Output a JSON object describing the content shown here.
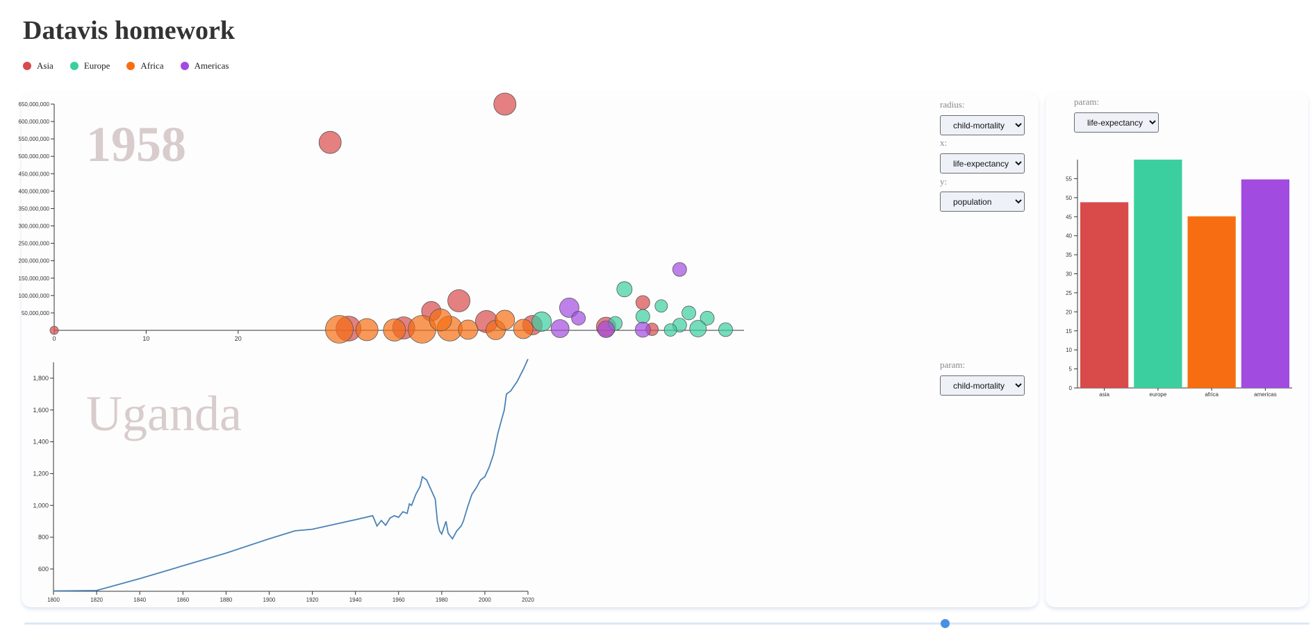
{
  "page_title": "Datavis homework",
  "legend": [
    {
      "label": "Asia",
      "color": "#d94a4a"
    },
    {
      "label": "Europe",
      "color": "#3bcf9f"
    },
    {
      "label": "Africa",
      "color": "#f76e12"
    },
    {
      "label": "Americas",
      "color": "#a14be0"
    }
  ],
  "controls": {
    "radius_label": "radius:",
    "radius_value": "child-mortality",
    "x_label": "x:",
    "x_value": "life-expectancy",
    "y_label": "y:",
    "y_value": "population",
    "line_param_label": "param:",
    "line_param_value": "child-mortality",
    "bar_param_label": "param:",
    "bar_param_value": "life-expectancy"
  },
  "scatter": {
    "year_label": "1958",
    "y_ticks": [
      "50,000,000",
      "100,000,000",
      "150,000,000",
      "200,000,000",
      "250,000,000",
      "300,000,000",
      "350,000,000",
      "400,000,000",
      "450,000,000",
      "500,000,000",
      "550,000,000",
      "600,000,000",
      "650,000,000"
    ],
    "x_ticks": [
      "0",
      "10",
      "20"
    ]
  },
  "line": {
    "country_label": "Uganda",
    "y_ticks": [
      "600",
      "800",
      "1,000",
      "1,200",
      "1,400",
      "1,600",
      "1,800"
    ],
    "x_ticks": [
      "1800",
      "1820",
      "1840",
      "1860",
      "1880",
      "1900",
      "1920",
      "1940",
      "1960",
      "1980",
      "2000",
      "2020"
    ]
  },
  "chart_data": [
    {
      "type": "scatter",
      "title": "1958",
      "xlabel": "life-expectancy",
      "ylabel": "population",
      "radius": "child-mortality",
      "xlim": [
        0,
        75
      ],
      "ylim": [
        0,
        650000000
      ],
      "series": [
        {
          "name": "Asia",
          "color": "#d94a4a",
          "points": [
            {
              "x": 0,
              "y": 0,
              "r": 6
            },
            {
              "x": 30,
              "y": 540000000,
              "r": 16
            },
            {
              "x": 49,
              "y": 650000000,
              "r": 16
            },
            {
              "x": 44,
              "y": 85000000,
              "r": 16
            },
            {
              "x": 41,
              "y": 55000000,
              "r": 14
            },
            {
              "x": 47,
              "y": 25000000,
              "r": 16
            },
            {
              "x": 32,
              "y": 5000000,
              "r": 18
            },
            {
              "x": 38,
              "y": 7000000,
              "r": 16
            },
            {
              "x": 52,
              "y": 15000000,
              "r": 14
            },
            {
              "x": 60,
              "y": 10000000,
              "r": 14
            },
            {
              "x": 64,
              "y": 80000000,
              "r": 10
            },
            {
              "x": 65,
              "y": 3000000,
              "r": 9
            }
          ]
        },
        {
          "name": "Europe",
          "color": "#3bcf9f",
          "points": [
            {
              "x": 53,
              "y": 25000000,
              "r": 14
            },
            {
              "x": 62,
              "y": 118000000,
              "r": 11
            },
            {
              "x": 69,
              "y": 50000000,
              "r": 10
            },
            {
              "x": 66,
              "y": 70000000,
              "r": 9
            },
            {
              "x": 71,
              "y": 35000000,
              "r": 10
            },
            {
              "x": 70,
              "y": 5000000,
              "r": 12
            },
            {
              "x": 73,
              "y": 2000000,
              "r": 10
            },
            {
              "x": 68,
              "y": 15000000,
              "r": 10
            },
            {
              "x": 67,
              "y": 1000000,
              "r": 9
            },
            {
              "x": 61,
              "y": 20000000,
              "r": 10
            },
            {
              "x": 64,
              "y": 40000000,
              "r": 10
            }
          ]
        },
        {
          "name": "Africa",
          "color": "#f76e12",
          "points": [
            {
              "x": 31,
              "y": 3000000,
              "r": 20
            },
            {
              "x": 34,
              "y": 2000000,
              "r": 16
            },
            {
              "x": 37,
              "y": 1000000,
              "r": 16
            },
            {
              "x": 40,
              "y": 3000000,
              "r": 20
            },
            {
              "x": 43,
              "y": 5000000,
              "r": 18
            },
            {
              "x": 45,
              "y": 2000000,
              "r": 14
            },
            {
              "x": 48,
              "y": 1000000,
              "r": 14
            },
            {
              "x": 51,
              "y": 4000000,
              "r": 14
            },
            {
              "x": 42,
              "y": 30000000,
              "r": 16
            },
            {
              "x": 49,
              "y": 30000000,
              "r": 14
            }
          ]
        },
        {
          "name": "Americas",
          "color": "#a14be0",
          "points": [
            {
              "x": 56,
              "y": 65000000,
              "r": 14
            },
            {
              "x": 55,
              "y": 5000000,
              "r": 13
            },
            {
              "x": 60,
              "y": 3000000,
              "r": 12
            },
            {
              "x": 68,
              "y": 175000000,
              "r": 10
            },
            {
              "x": 64,
              "y": 2000000,
              "r": 11
            },
            {
              "x": 57,
              "y": 35000000,
              "r": 10
            }
          ]
        }
      ]
    },
    {
      "type": "line",
      "title": "Uganda",
      "ylabel": "child-mortality",
      "xlim": [
        1800,
        2020
      ],
      "ylim": [
        460,
        1900
      ],
      "series": [
        {
          "name": "Uganda",
          "color": "#4a82b6",
          "points": [
            [
              1800,
              462
            ],
            [
              1820,
              465
            ],
            [
              1840,
              540
            ],
            [
              1860,
              620
            ],
            [
              1880,
              700
            ],
            [
              1900,
              790
            ],
            [
              1912,
              840
            ],
            [
              1920,
              850
            ],
            [
              1930,
              880
            ],
            [
              1940,
              910
            ],
            [
              1948,
              935
            ],
            [
              1950,
              870
            ],
            [
              1952,
              905
            ],
            [
              1954,
              875
            ],
            [
              1956,
              920
            ],
            [
              1958,
              935
            ],
            [
              1960,
              925
            ],
            [
              1962,
              960
            ],
            [
              1964,
              950
            ],
            [
              1965,
              1010
            ],
            [
              1966,
              1000
            ],
            [
              1968,
              1070
            ],
            [
              1970,
              1120
            ],
            [
              1971,
              1180
            ],
            [
              1973,
              1160
            ],
            [
              1975,
              1100
            ],
            [
              1977,
              1040
            ],
            [
              1978,
              900
            ],
            [
              1979,
              840
            ],
            [
              1980,
              820
            ],
            [
              1982,
              900
            ],
            [
              1983,
              825
            ],
            [
              1985,
              790
            ],
            [
              1987,
              840
            ],
            [
              1989,
              870
            ],
            [
              1990,
              900
            ],
            [
              1992,
              990
            ],
            [
              1994,
              1070
            ],
            [
              1996,
              1110
            ],
            [
              1998,
              1160
            ],
            [
              2000,
              1180
            ],
            [
              2002,
              1240
            ],
            [
              2004,
              1320
            ],
            [
              2006,
              1450
            ],
            [
              2008,
              1550
            ],
            [
              2009,
              1600
            ],
            [
              2010,
              1700
            ],
            [
              2012,
              1720
            ],
            [
              2015,
              1780
            ],
            [
              2018,
              1860
            ],
            [
              2020,
              1920
            ]
          ]
        }
      ]
    },
    {
      "type": "bar",
      "ylabel": "life-expectancy",
      "categories": [
        "asia",
        "europe",
        "africa",
        "americas"
      ],
      "values": [
        48.8,
        60,
        45.1,
        54.8
      ],
      "colors": [
        "#d94a4a",
        "#3bcf9f",
        "#f76e12",
        "#a14be0"
      ],
      "ylim": [
        0,
        60
      ],
      "y_ticks": [
        "0",
        "5",
        "10",
        "15",
        "20",
        "25",
        "30",
        "35",
        "40",
        "45",
        "50",
        "55"
      ]
    }
  ]
}
